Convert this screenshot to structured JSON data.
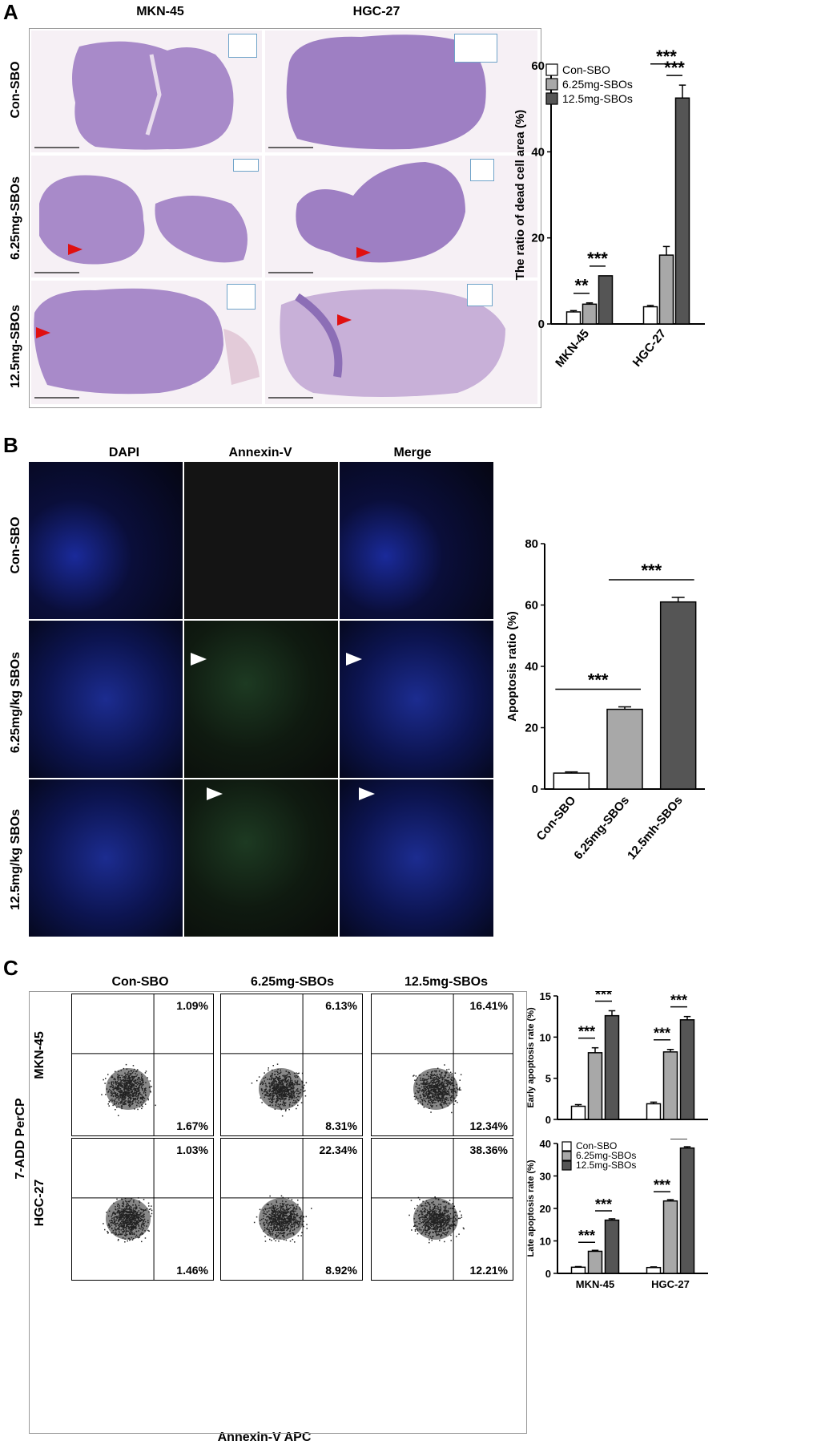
{
  "panelA": {
    "letter": "A",
    "col_headers": [
      "MKN-45",
      "HGC-27"
    ],
    "row_headers": [
      "Con-SBO",
      "6.25mg-SBOs",
      "12.5mg-SBOs"
    ]
  },
  "panelB": {
    "letter": "B",
    "col_headers": [
      "DAPI",
      "Annexin-V",
      "Merge"
    ],
    "row_headers": [
      "Con-SBO",
      "6.25mg/kg SBOs",
      "12.5mg/kg SBOs"
    ]
  },
  "panelC": {
    "letter": "C",
    "col_headers": [
      "Con-SBO",
      "6.25mg-SBOs",
      "12.5mg-SBOs"
    ],
    "row_headers": [
      "MKN-45",
      "HGC-27"
    ],
    "y_axis_label": "7-ADD PerCP",
    "x_axis_label": "Annexin-V APC",
    "quadrant_percents": [
      [
        "1.09%",
        "1.67%"
      ],
      [
        "6.13%",
        "8.31%"
      ],
      [
        "16.41%",
        "12.34%"
      ],
      [
        "1.03%",
        "1.46%"
      ],
      [
        "22.34%",
        "8.92%"
      ],
      [
        "38.36%",
        "12.21%"
      ]
    ]
  },
  "chart_data": [
    {
      "type": "bar",
      "ylabel": "The ratio of dead cell area (%)",
      "categories": [
        "MKN-45",
        "HGC-27"
      ],
      "ylim": [
        0,
        60
      ],
      "yticks": [
        0,
        20,
        40,
        60
      ],
      "series": [
        {
          "name": "Con-SBO",
          "values": [
            2.8,
            4.0
          ],
          "errors": [
            0.3,
            0.3
          ],
          "color": "#ffffff"
        },
        {
          "name": "6.25mg-SBOs",
          "values": [
            4.6,
            16.0
          ],
          "errors": [
            0.3,
            2.0
          ],
          "color": "#a8a8a8"
        },
        {
          "name": "12.5mg-SBOs",
          "values": [
            11.2,
            52.5
          ],
          "errors": [
            0.0,
            3.0
          ],
          "color": "#555555"
        }
      ],
      "significance": [
        {
          "label": "**",
          "category": "MKN-45",
          "between": [
            0,
            1
          ]
        },
        {
          "label": "***",
          "category": "MKN-45",
          "between": [
            1,
            2
          ]
        },
        {
          "label": "***",
          "category": "HGC-27",
          "between": [
            1,
            2
          ]
        },
        {
          "label": "***",
          "category": "HGC-27",
          "between": [
            0,
            2
          ]
        }
      ],
      "legend": "top-left"
    },
    {
      "type": "bar",
      "ylabel": "Apoptosis ratio (%)",
      "categories": [
        "Con-SBO",
        "6.25mg-SBOs",
        "12.5mh-SBOs"
      ],
      "values": [
        5.2,
        26.0,
        61.0
      ],
      "errors": [
        0.4,
        0.8,
        1.5
      ],
      "colors": [
        "#ffffff",
        "#a8a8a8",
        "#555555"
      ],
      "ylim": [
        0,
        80
      ],
      "yticks": [
        0,
        20,
        40,
        60,
        80
      ],
      "significance": [
        {
          "label": "***",
          "between": [
            0,
            1
          ]
        },
        {
          "label": "***",
          "between": [
            1,
            2
          ]
        }
      ]
    },
    {
      "type": "bar",
      "ylabel": "Early apoptosis rate (%)",
      "categories": [
        "MKN-45",
        "HGC-27"
      ],
      "ylim": [
        0,
        15
      ],
      "yticks": [
        0,
        5,
        10,
        15
      ],
      "series": [
        {
          "name": "Con-SBO",
          "values": [
            1.6,
            1.9
          ],
          "errors": [
            0.2,
            0.2
          ]
        },
        {
          "name": "6.25mg-SBOs",
          "values": [
            8.1,
            8.2
          ],
          "errors": [
            0.6,
            0.3
          ]
        },
        {
          "name": "12.5mg-SBOs",
          "values": [
            12.6,
            12.1
          ],
          "errors": [
            0.6,
            0.4
          ]
        }
      ],
      "significance": [
        {
          "label": "***",
          "category": "MKN-45",
          "between": [
            0,
            1
          ]
        },
        {
          "label": "***",
          "category": "MKN-45",
          "between": [
            1,
            2
          ]
        },
        {
          "label": "***",
          "category": "HGC-27",
          "between": [
            0,
            1
          ]
        },
        {
          "label": "***",
          "category": "HGC-27",
          "between": [
            1,
            2
          ]
        }
      ]
    },
    {
      "type": "bar",
      "ylabel": "Late apoptosis rate (%)",
      "categories": [
        "MKN-45",
        "HGC-27"
      ],
      "ylim": [
        0,
        40
      ],
      "yticks": [
        0,
        10,
        20,
        30,
        40
      ],
      "series": [
        {
          "name": "Con-SBO",
          "values": [
            1.9,
            1.8
          ],
          "errors": [
            0.2,
            0.2
          ]
        },
        {
          "name": "6.25mg-SBOs",
          "values": [
            6.8,
            22.3
          ],
          "errors": [
            0.3,
            0.4
          ]
        },
        {
          "name": "12.5mg-SBOs",
          "values": [
            16.4,
            38.6
          ],
          "errors": [
            0.4,
            0.4
          ]
        }
      ],
      "significance": [
        {
          "label": "***",
          "category": "MKN-45",
          "between": [
            0,
            1
          ]
        },
        {
          "label": "***",
          "category": "MKN-45",
          "between": [
            1,
            2
          ]
        },
        {
          "label": "***",
          "category": "HGC-27",
          "between": [
            0,
            1
          ]
        },
        {
          "label": "***",
          "category": "HGC-27",
          "between": [
            1,
            2
          ]
        }
      ],
      "legend": "top-left"
    }
  ]
}
